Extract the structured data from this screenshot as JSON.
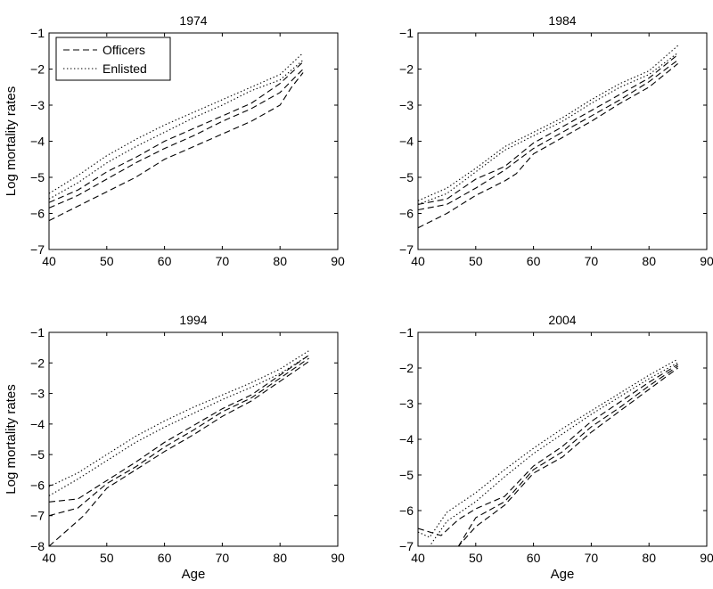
{
  "chart_data": [
    {
      "type": "line",
      "title": "1974",
      "xlabel": "",
      "ylabel": "Log mortality rates",
      "xlim": [
        40,
        90
      ],
      "ylim": [
        -7,
        -1
      ],
      "xticks": [
        40,
        50,
        60,
        70,
        80,
        90
      ],
      "yticks": [
        -7,
        -6,
        -5,
        -4,
        -3,
        -2,
        -1
      ],
      "grid": false,
      "legend": {
        "placement": "top-left",
        "entries": [
          "Officers",
          "Enlisted"
        ]
      },
      "series": [
        {
          "group": "Officers",
          "style": "dashed",
          "points": [
            [
              40,
              -6.2
            ],
            [
              45,
              -5.8
            ],
            [
              50,
              -5.4
            ],
            [
              55,
              -5.0
            ],
            [
              60,
              -4.5
            ],
            [
              65,
              -4.15
            ],
            [
              70,
              -3.8
            ],
            [
              75,
              -3.45
            ],
            [
              80,
              -3.0
            ],
            [
              82,
              -2.5
            ],
            [
              84,
              -2.1
            ]
          ]
        },
        {
          "group": "Officers",
          "style": "dashed",
          "points": [
            [
              40,
              -5.85
            ],
            [
              45,
              -5.5
            ],
            [
              50,
              -5.05
            ],
            [
              55,
              -4.6
            ],
            [
              60,
              -4.2
            ],
            [
              65,
              -3.85
            ],
            [
              70,
              -3.45
            ],
            [
              75,
              -3.1
            ],
            [
              80,
              -2.65
            ],
            [
              84,
              -2.0
            ]
          ]
        },
        {
          "group": "Officers",
          "style": "dashed",
          "points": [
            [
              40,
              -5.7
            ],
            [
              45,
              -5.35
            ],
            [
              50,
              -4.85
            ],
            [
              55,
              -4.45
            ],
            [
              60,
              -4.0
            ],
            [
              65,
              -3.65
            ],
            [
              70,
              -3.3
            ],
            [
              75,
              -2.95
            ],
            [
              80,
              -2.4
            ],
            [
              84,
              -1.8
            ]
          ]
        },
        {
          "group": "Enlisted",
          "style": "dotted",
          "points": [
            [
              40,
              -5.6
            ],
            [
              45,
              -5.15
            ],
            [
              50,
              -4.6
            ],
            [
              55,
              -4.15
            ],
            [
              60,
              -3.75
            ],
            [
              65,
              -3.35
            ],
            [
              70,
              -3.0
            ],
            [
              75,
              -2.6
            ],
            [
              80,
              -2.3
            ],
            [
              84,
              -1.75
            ]
          ]
        },
        {
          "group": "Enlisted",
          "style": "dotted",
          "points": [
            [
              40,
              -5.45
            ],
            [
              45,
              -4.95
            ],
            [
              50,
              -4.4
            ],
            [
              55,
              -3.95
            ],
            [
              60,
              -3.55
            ],
            [
              65,
              -3.2
            ],
            [
              70,
              -2.85
            ],
            [
              75,
              -2.5
            ],
            [
              80,
              -2.15
            ],
            [
              84,
              -1.55
            ]
          ]
        }
      ]
    },
    {
      "type": "line",
      "title": "1984",
      "xlabel": "",
      "ylabel": "",
      "xlim": [
        40,
        90
      ],
      "ylim": [
        -7,
        -1
      ],
      "xticks": [
        40,
        50,
        60,
        70,
        80,
        90
      ],
      "yticks": [
        -7,
        -6,
        -5,
        -4,
        -3,
        -2,
        -1
      ],
      "grid": false,
      "series": [
        {
          "group": "Officers",
          "style": "dashed",
          "points": [
            [
              40,
              -6.4
            ],
            [
              45,
              -6.0
            ],
            [
              50,
              -5.5
            ],
            [
              55,
              -5.1
            ],
            [
              57,
              -4.9
            ],
            [
              60,
              -4.35
            ],
            [
              65,
              -3.9
            ],
            [
              70,
              -3.45
            ],
            [
              75,
              -2.95
            ],
            [
              80,
              -2.5
            ],
            [
              85,
              -1.85
            ]
          ]
        },
        {
          "group": "Officers",
          "style": "dashed",
          "points": [
            [
              40,
              -5.9
            ],
            [
              45,
              -5.75
            ],
            [
              50,
              -5.3
            ],
            [
              55,
              -4.8
            ],
            [
              60,
              -4.2
            ],
            [
              65,
              -3.75
            ],
            [
              70,
              -3.3
            ],
            [
              75,
              -2.85
            ],
            [
              80,
              -2.35
            ],
            [
              85,
              -1.75
            ]
          ]
        },
        {
          "group": "Officers",
          "style": "dashed",
          "points": [
            [
              40,
              -5.75
            ],
            [
              45,
              -5.6
            ],
            [
              50,
              -5.05
            ],
            [
              55,
              -4.7
            ],
            [
              60,
              -4.05
            ],
            [
              65,
              -3.6
            ],
            [
              70,
              -3.15
            ],
            [
              75,
              -2.7
            ],
            [
              80,
              -2.25
            ],
            [
              85,
              -1.6
            ]
          ]
        },
        {
          "group": "Enlisted",
          "style": "dotted",
          "points": [
            [
              40,
              -5.75
            ],
            [
              45,
              -5.45
            ],
            [
              50,
              -4.85
            ],
            [
              55,
              -4.25
            ],
            [
              60,
              -3.85
            ],
            [
              65,
              -3.45
            ],
            [
              70,
              -2.95
            ],
            [
              75,
              -2.5
            ],
            [
              80,
              -2.15
            ],
            [
              85,
              -1.55
            ]
          ]
        },
        {
          "group": "Enlisted",
          "style": "dotted",
          "points": [
            [
              40,
              -5.65
            ],
            [
              45,
              -5.3
            ],
            [
              50,
              -4.75
            ],
            [
              55,
              -4.15
            ],
            [
              60,
              -3.75
            ],
            [
              65,
              -3.35
            ],
            [
              70,
              -2.85
            ],
            [
              75,
              -2.4
            ],
            [
              80,
              -2.05
            ],
            [
              85,
              -1.35
            ]
          ]
        }
      ]
    },
    {
      "type": "line",
      "title": "1994",
      "xlabel": "Age",
      "ylabel": "Log mortality rates",
      "xlim": [
        40,
        90
      ],
      "ylim": [
        -8,
        -1
      ],
      "xticks": [
        40,
        50,
        60,
        70,
        80,
        90
      ],
      "yticks": [
        -8,
        -7,
        -6,
        -5,
        -4,
        -3,
        -2,
        -1
      ],
      "grid": false,
      "series": [
        {
          "group": "Officers",
          "style": "dashed",
          "points": [
            [
              40,
              -8.0
            ],
            [
              43,
              -7.5
            ],
            [
              46,
              -7.0
            ],
            [
              50,
              -6.1
            ],
            [
              55,
              -5.5
            ],
            [
              60,
              -4.9
            ],
            [
              65,
              -4.35
            ],
            [
              70,
              -3.75
            ],
            [
              75,
              -3.25
            ],
            [
              80,
              -2.6
            ],
            [
              85,
              -1.95
            ]
          ]
        },
        {
          "group": "Officers",
          "style": "dashed",
          "points": [
            [
              40,
              -7.0
            ],
            [
              45,
              -6.75
            ],
            [
              50,
              -5.95
            ],
            [
              55,
              -5.4
            ],
            [
              60,
              -4.75
            ],
            [
              65,
              -4.2
            ],
            [
              70,
              -3.6
            ],
            [
              75,
              -3.15
            ],
            [
              80,
              -2.5
            ],
            [
              85,
              -1.85
            ]
          ]
        },
        {
          "group": "Officers",
          "style": "dashed",
          "points": [
            [
              40,
              -6.55
            ],
            [
              45,
              -6.45
            ],
            [
              50,
              -5.85
            ],
            [
              55,
              -5.25
            ],
            [
              60,
              -4.6
            ],
            [
              65,
              -4.05
            ],
            [
              70,
              -3.5
            ],
            [
              75,
              -3.05
            ],
            [
              80,
              -2.4
            ],
            [
              85,
              -1.75
            ]
          ]
        },
        {
          "group": "Enlisted",
          "style": "dotted",
          "points": [
            [
              40,
              -6.35
            ],
            [
              45,
              -5.8
            ],
            [
              50,
              -5.2
            ],
            [
              55,
              -4.6
            ],
            [
              60,
              -4.1
            ],
            [
              65,
              -3.65
            ],
            [
              70,
              -3.2
            ],
            [
              75,
              -2.8
            ],
            [
              80,
              -2.35
            ],
            [
              85,
              -1.75
            ]
          ]
        },
        {
          "group": "Enlisted",
          "style": "dotted",
          "points": [
            [
              40,
              -6.05
            ],
            [
              45,
              -5.6
            ],
            [
              50,
              -5.0
            ],
            [
              55,
              -4.4
            ],
            [
              60,
              -3.9
            ],
            [
              65,
              -3.45
            ],
            [
              70,
              -3.05
            ],
            [
              75,
              -2.65
            ],
            [
              80,
              -2.2
            ],
            [
              85,
              -1.6
            ]
          ]
        }
      ]
    },
    {
      "type": "line",
      "title": "2004",
      "xlabel": "Age",
      "ylabel": "",
      "xlim": [
        40,
        90
      ],
      "ylim": [
        -7,
        -1
      ],
      "xticks": [
        40,
        50,
        60,
        70,
        80,
        90
      ],
      "yticks": [
        -7,
        -6,
        -5,
        -4,
        -3,
        -2,
        -1
      ],
      "grid": false,
      "series": [
        {
          "group": "Officers",
          "style": "dashed",
          "points": [
            [
              45,
              -7.0
            ],
            [
              47,
              -7.0
            ],
            [
              50,
              -6.45
            ],
            [
              55,
              -5.85
            ],
            [
              60,
              -4.95
            ],
            [
              65,
              -4.5
            ],
            [
              70,
              -3.8
            ],
            [
              75,
              -3.2
            ],
            [
              80,
              -2.6
            ],
            [
              85,
              -2.0
            ]
          ]
        },
        {
          "group": "Officers",
          "style": "dashed",
          "points": [
            [
              47,
              -7.0
            ],
            [
              50,
              -6.2
            ],
            [
              55,
              -5.75
            ],
            [
              60,
              -4.85
            ],
            [
              65,
              -4.35
            ],
            [
              70,
              -3.65
            ],
            [
              75,
              -3.1
            ],
            [
              80,
              -2.5
            ],
            [
              85,
              -1.95
            ]
          ]
        },
        {
          "group": "Officers",
          "style": "dashed",
          "points": [
            [
              40,
              -6.5
            ],
            [
              44,
              -6.7
            ],
            [
              47,
              -6.25
            ],
            [
              50,
              -5.95
            ],
            [
              55,
              -5.6
            ],
            [
              60,
              -4.75
            ],
            [
              65,
              -4.2
            ],
            [
              70,
              -3.5
            ],
            [
              75,
              -2.95
            ],
            [
              80,
              -2.4
            ],
            [
              85,
              -1.9
            ]
          ]
        },
        {
          "group": "Enlisted",
          "style": "dotted",
          "points": [
            [
              40,
              -7.0
            ],
            [
              42,
              -7.0
            ],
            [
              45,
              -6.3
            ],
            [
              50,
              -5.75
            ],
            [
              55,
              -5.05
            ],
            [
              60,
              -4.4
            ],
            [
              65,
              -3.85
            ],
            [
              70,
              -3.3
            ],
            [
              75,
              -2.8
            ],
            [
              80,
              -2.3
            ],
            [
              85,
              -1.85
            ]
          ]
        },
        {
          "group": "Enlisted",
          "style": "dotted",
          "points": [
            [
              40,
              -6.6
            ],
            [
              42,
              -6.75
            ],
            [
              45,
              -6.05
            ],
            [
              50,
              -5.5
            ],
            [
              55,
              -4.85
            ],
            [
              60,
              -4.25
            ],
            [
              65,
              -3.7
            ],
            [
              70,
              -3.2
            ],
            [
              75,
              -2.7
            ],
            [
              80,
              -2.2
            ],
            [
              85,
              -1.75
            ]
          ]
        }
      ]
    }
  ]
}
